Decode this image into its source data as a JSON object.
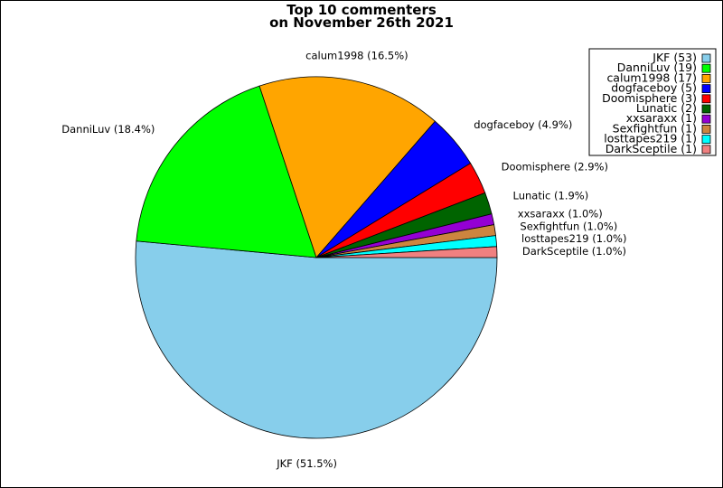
{
  "chart_data": {
    "type": "pie",
    "title_lines": [
      "Top 10 commenters",
      "on November 26th 2021"
    ],
    "slices": [
      {
        "label": "JKF",
        "count": 53,
        "percent": "51.5%",
        "color": "#87ceeb"
      },
      {
        "label": "DanniLuv",
        "count": 19,
        "percent": "18.4%",
        "color": "#00ff00"
      },
      {
        "label": "calum1998",
        "count": 17,
        "percent": "16.5%",
        "color": "#ffa500"
      },
      {
        "label": "dogfaceboy",
        "count": 5,
        "percent": "4.9%",
        "color": "#0000ff"
      },
      {
        "label": "Doomisphere",
        "count": 3,
        "percent": "2.9%",
        "color": "#ff0000"
      },
      {
        "label": "Lunatic",
        "count": 2,
        "percent": "1.9%",
        "color": "#006400"
      },
      {
        "label": "xxsaraxx",
        "count": 1,
        "percent": "1.0%",
        "color": "#9400d3"
      },
      {
        "label": "Sexfightfun",
        "count": 1,
        "percent": "1.0%",
        "color": "#cd853f"
      },
      {
        "label": "losttapes219",
        "count": 1,
        "percent": "1.0%",
        "color": "#00ffff"
      },
      {
        "label": "DarkSceptile",
        "count": 1,
        "percent": "1.0%",
        "color": "#f08080"
      }
    ],
    "legend_position": "top-right",
    "start_angle": "0 degrees (3 o'clock)",
    "direction": "clockwise"
  }
}
